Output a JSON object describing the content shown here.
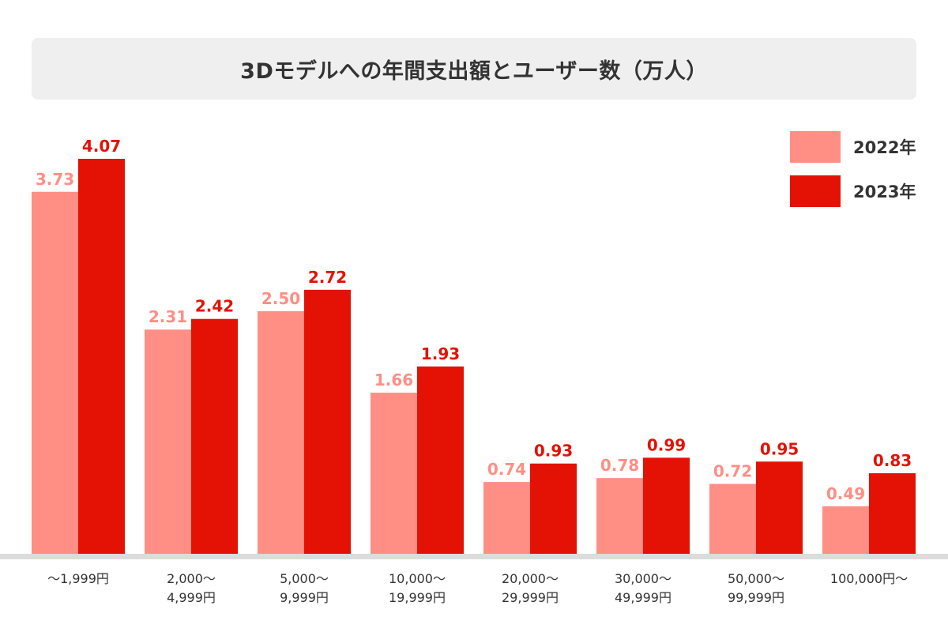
{
  "chart_data": {
    "type": "bar",
    "title": "3Dモデルへの年間支出額とユーザー数（万人）",
    "categories": [
      [
        "〜1,999円"
      ],
      [
        "2,000〜",
        "4,999円"
      ],
      [
        "5,000〜",
        "9,999円"
      ],
      [
        "10,000〜",
        "19,999円"
      ],
      [
        "20,000〜",
        "29,999円"
      ],
      [
        "30,000〜",
        "49,999円"
      ],
      [
        "50,000〜",
        "99,999円"
      ],
      [
        "100,000円〜"
      ]
    ],
    "series": [
      {
        "name": "2022年",
        "color": "#ff8e85",
        "values": [
          3.73,
          2.31,
          2.5,
          1.66,
          0.74,
          0.78,
          0.72,
          0.49
        ],
        "labels": [
          "3.73",
          "2.31",
          "2.50",
          "1.66",
          "0.74",
          "0.78",
          "0.72",
          "0.49"
        ]
      },
      {
        "name": "2023年",
        "color": "#e31204",
        "values": [
          4.07,
          2.42,
          2.72,
          1.93,
          0.93,
          0.99,
          0.95,
          0.83
        ],
        "labels": [
          "4.07",
          "2.42",
          "2.72",
          "1.93",
          "0.93",
          "0.99",
          "0.95",
          "0.83"
        ]
      }
    ],
    "ylim": [
      0,
      4.07
    ],
    "grid": false,
    "legend_position": "top-right",
    "xlabel": "",
    "ylabel": ""
  }
}
